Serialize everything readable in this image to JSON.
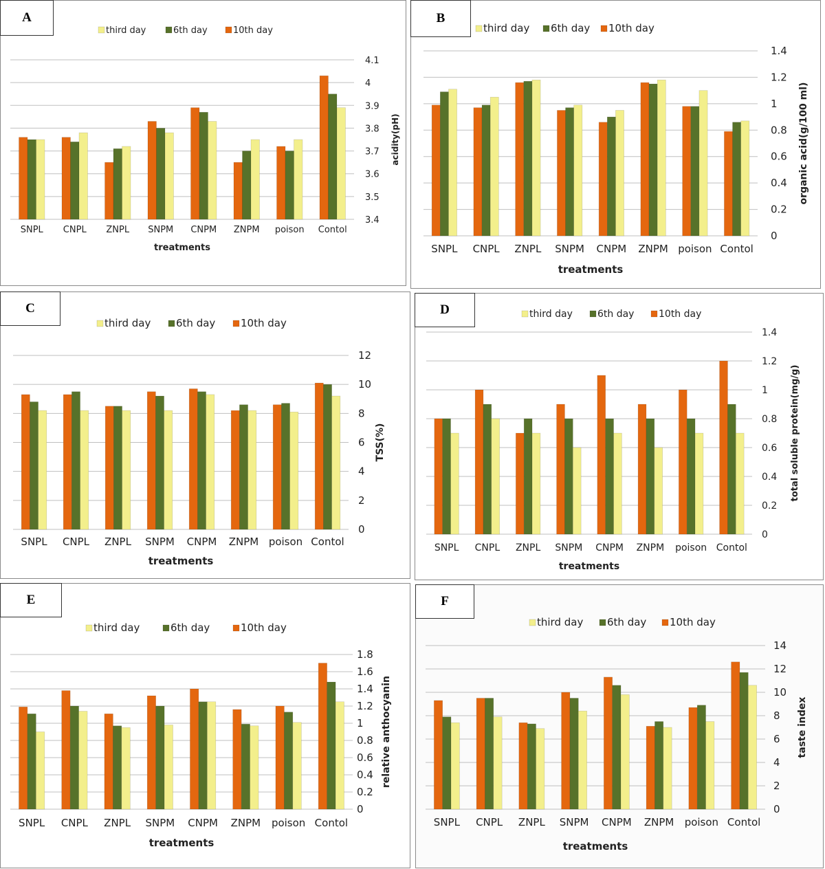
{
  "colors": {
    "third_day": "#f3ef8c",
    "sixth_day": "#57722a",
    "tenth_day": "#e4670f",
    "grid": "#bfbfbf"
  },
  "chart_data": [
    {
      "id": "A",
      "panel_label": "A",
      "type": "bar",
      "categories": [
        "SNPL",
        "CNPL",
        "ZNPL",
        "SNPM",
        "CNPM",
        "ZNPM",
        "poison",
        "Contol"
      ],
      "series": [
        {
          "name": "10th day",
          "values": [
            3.76,
            3.76,
            3.65,
            3.83,
            3.89,
            3.65,
            3.72,
            4.03
          ]
        },
        {
          "name": "6th day",
          "values": [
            3.75,
            3.74,
            3.71,
            3.8,
            3.87,
            3.7,
            3.7,
            3.95
          ]
        },
        {
          "name": "third day",
          "values": [
            3.75,
            3.78,
            3.72,
            3.78,
            3.83,
            3.75,
            3.75,
            3.89
          ]
        }
      ],
      "legend_order": [
        "third day",
        "6th day",
        "10th day"
      ],
      "xlabel": "treatments",
      "ylabel": "acidity(pH)",
      "ylim": [
        3.4,
        4.1
      ],
      "yticks": [
        "3.4",
        "3.5",
        "3.6",
        "3.7",
        "3.8",
        "3.9",
        "4",
        "4.1"
      ],
      "legend_position": "top",
      "grid": true
    },
    {
      "id": "B",
      "panel_label": "B",
      "type": "bar",
      "categories": [
        "SNPL",
        "CNPL",
        "ZNPL",
        "SNPM",
        "CNPM",
        "ZNPM",
        "poison",
        "Contol"
      ],
      "series": [
        {
          "name": "10th day",
          "values": [
            0.99,
            0.97,
            1.16,
            0.95,
            0.86,
            1.16,
            0.98,
            0.79
          ]
        },
        {
          "name": "6th day",
          "values": [
            1.09,
            0.99,
            1.17,
            0.97,
            0.9,
            1.15,
            0.98,
            0.86
          ]
        },
        {
          "name": "third day",
          "values": [
            1.11,
            1.05,
            1.18,
            0.99,
            0.95,
            1.18,
            1.1,
            0.87
          ]
        }
      ],
      "legend_order": [
        "third day",
        "6th day",
        "10th day"
      ],
      "xlabel": "treatments",
      "ylabel": "organic acid(g/100 ml)",
      "ylim": [
        0,
        1.4
      ],
      "yticks": [
        "0",
        "0.2",
        "0.4",
        "0.6",
        "0.8",
        "1",
        "1.2",
        "1.4"
      ],
      "legend_position": "top",
      "grid": true
    },
    {
      "id": "C",
      "panel_label": "C",
      "type": "bar",
      "categories": [
        "SNPL",
        "CNPL",
        "ZNPL",
        "SNPM",
        "CNPM",
        "ZNPM",
        "poison",
        "Contol"
      ],
      "series": [
        {
          "name": "10th day",
          "values": [
            9.3,
            9.3,
            8.5,
            9.5,
            9.7,
            8.2,
            8.6,
            10.1
          ]
        },
        {
          "name": "6th day",
          "values": [
            8.8,
            9.5,
            8.5,
            9.2,
            9.5,
            8.6,
            8.7,
            10.0
          ]
        },
        {
          "name": "third day",
          "values": [
            8.2,
            8.2,
            8.2,
            8.2,
            9.3,
            8.2,
            8.1,
            9.2
          ]
        }
      ],
      "legend_order": [
        "third day",
        "6th day",
        "10th day"
      ],
      "xlabel": "treatments",
      "ylabel": "TSS(%)",
      "ylim": [
        0,
        12
      ],
      "yticks": [
        "0",
        "2",
        "4",
        "6",
        "8",
        "10",
        "12"
      ],
      "legend_position": "top",
      "grid": true
    },
    {
      "id": "D",
      "panel_label": "D",
      "type": "bar",
      "categories": [
        "SNPL",
        "CNPL",
        "ZNPL",
        "SNPM",
        "CNPM",
        "ZNPM",
        "poison",
        "Contol"
      ],
      "series": [
        {
          "name": "10th day",
          "values": [
            0.8,
            1.0,
            0.7,
            0.9,
            1.1,
            0.9,
            1.0,
            1.2
          ]
        },
        {
          "name": "6th day",
          "values": [
            0.8,
            0.9,
            0.8,
            0.8,
            0.8,
            0.8,
            0.8,
            0.9
          ]
        },
        {
          "name": "third day",
          "values": [
            0.7,
            0.8,
            0.7,
            0.6,
            0.7,
            0.6,
            0.7,
            0.7
          ]
        }
      ],
      "legend_order": [
        "third day",
        "6th day",
        "10th day"
      ],
      "xlabel": "treatments",
      "ylabel": "total soluble protein(mg/g)",
      "ylim": [
        0,
        1.4
      ],
      "yticks": [
        "0",
        "0.2",
        "0.4",
        "0.6",
        "0.8",
        "1",
        "1.2",
        "1.4"
      ],
      "legend_position": "top",
      "grid": true
    },
    {
      "id": "E",
      "panel_label": "E",
      "type": "bar",
      "categories": [
        "SNPL",
        "CNPL",
        "ZNPL",
        "SNPM",
        "CNPM",
        "ZNPM",
        "poison",
        "Contol"
      ],
      "series": [
        {
          "name": "10th day",
          "values": [
            1.19,
            1.38,
            1.11,
            1.32,
            1.4,
            1.16,
            1.2,
            1.7
          ]
        },
        {
          "name": "6th day",
          "values": [
            1.11,
            1.2,
            0.97,
            1.2,
            1.25,
            0.99,
            1.13,
            1.48
          ]
        },
        {
          "name": "third day",
          "values": [
            0.9,
            1.14,
            0.95,
            0.98,
            1.25,
            0.97,
            1.01,
            1.25
          ]
        }
      ],
      "legend_order": [
        "third day",
        "6th day",
        "10th day"
      ],
      "xlabel": "treatments",
      "ylabel": "relative anthocyanin",
      "ylim": [
        0,
        1.8
      ],
      "yticks": [
        "0",
        "0.2",
        "0.4",
        "0.6",
        "0.8",
        "1",
        "1.2",
        "1.4",
        "1.6",
        "1.8"
      ],
      "legend_position": "top",
      "grid": true
    },
    {
      "id": "F",
      "panel_label": "F",
      "type": "bar",
      "categories": [
        "SNPL",
        "CNPL",
        "ZNPL",
        "SNPM",
        "CNPM",
        "ZNPM",
        "poison",
        "Contol"
      ],
      "series": [
        {
          "name": "10th day",
          "values": [
            9.3,
            9.5,
            7.4,
            10.0,
            11.3,
            7.1,
            8.7,
            12.6
          ]
        },
        {
          "name": "6th day",
          "values": [
            7.9,
            9.5,
            7.3,
            9.5,
            10.6,
            7.5,
            8.9,
            11.7
          ]
        },
        {
          "name": "third day",
          "values": [
            7.4,
            7.9,
            6.9,
            8.4,
            9.8,
            7.0,
            7.5,
            10.6
          ]
        }
      ],
      "legend_order": [
        "third day",
        "6th day",
        "10th day"
      ],
      "xlabel": "treatments",
      "ylabel": "taste index",
      "ylim": [
        0,
        14
      ],
      "yticks": [
        "0",
        "2",
        "4",
        "6",
        "8",
        "10",
        "12",
        "14"
      ],
      "legend_position": "top",
      "grid": true
    }
  ]
}
